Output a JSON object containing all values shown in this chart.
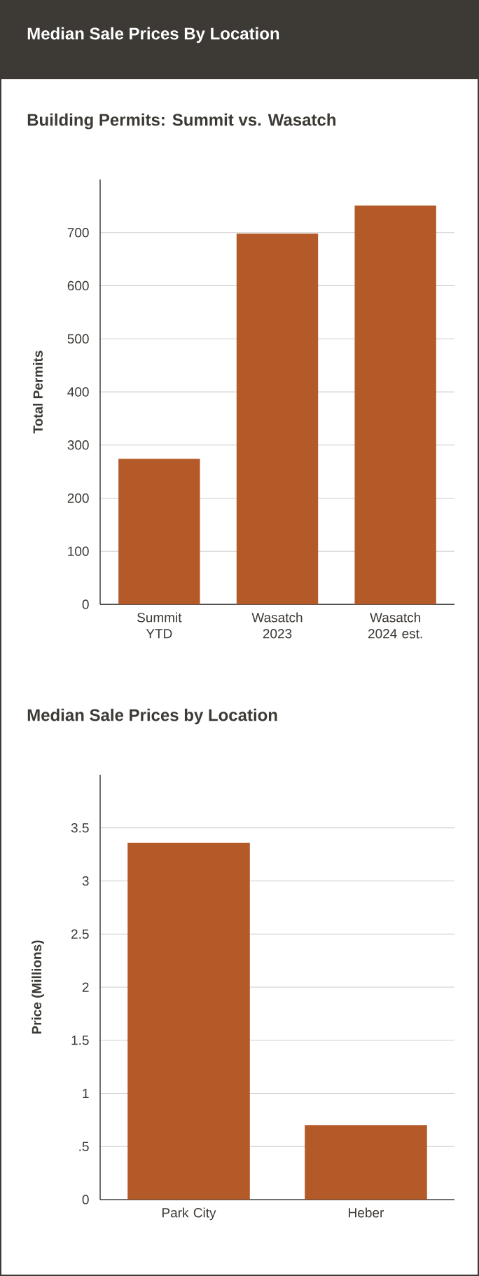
{
  "chart_data": [
    {
      "type": "other",
      "title": "Median Sale Prices By Location"
    },
    {
      "type": "bar",
      "title": "Building Permits: Summit vs. Wasatch",
      "ylabel": "Total Permits",
      "categories": [
        "Summit YTD",
        "Wasatch 2023",
        "Wasatch 2024 est."
      ],
      "values": [
        274,
        698,
        751
      ],
      "color": "#b45a28",
      "ylim": [
        0,
        800
      ],
      "yticks": [
        0,
        100,
        200,
        300,
        400,
        500,
        600,
        700
      ],
      "grid": "y"
    },
    {
      "type": "bar",
      "title": "Median Sale Prices by Location",
      "ylabel": "Price (Millions)",
      "categories": [
        "Park City",
        "Heber"
      ],
      "values": [
        3.36,
        0.7
      ],
      "color": "#b45a28",
      "ylim": [
        0,
        4
      ],
      "yticks": [
        0,
        {
          "value": 0.5,
          "label": ".5"
        },
        1,
        1.5,
        2,
        2.5,
        3,
        3.5
      ],
      "grid": "y"
    }
  ]
}
